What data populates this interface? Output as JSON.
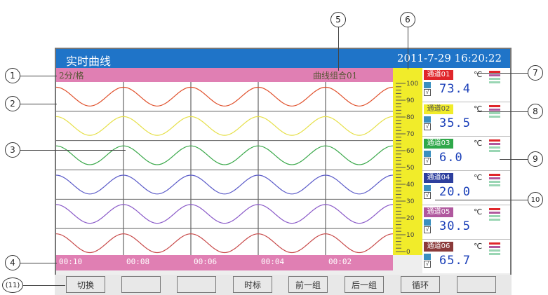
{
  "app": {
    "title": "实时曲线",
    "datetime": "2011-7-29   16:20:22"
  },
  "info": {
    "interval": "2分/格",
    "group": "曲线组合01"
  },
  "time_labels": [
    "00:10",
    "00:08",
    "00:06",
    "00:04",
    "00:02"
  ],
  "scale_labels": [
    "100",
    "90",
    "80",
    "70",
    "60",
    "50",
    "40",
    "30",
    "20",
    "10",
    "0"
  ],
  "channels": [
    {
      "label": "通道01",
      "color": "#e0262b",
      "value": "73.4",
      "unit": "℃"
    },
    {
      "label": "通道02",
      "color": "#f1ec2a",
      "value": "35.5",
      "unit": "℃"
    },
    {
      "label": "通道03",
      "color": "#2fa84a",
      "value": "6.0",
      "unit": "℃"
    },
    {
      "label": "通道04",
      "color": "#2d3f9e",
      "value": "20.0",
      "unit": "℃"
    },
    {
      "label": "通道05",
      "color": "#b0589e",
      "value": "30.5",
      "unit": "℃"
    },
    {
      "label": "通道06",
      "color": "#8b3a3a",
      "value": "65.7",
      "unit": "℃"
    }
  ],
  "buttons": [
    "切换",
    "",
    "",
    "时标",
    "前一组",
    "后一组",
    "循环",
    ""
  ],
  "annotations": {
    "n1": "1",
    "n2": "2",
    "n3": "3",
    "n4": "4",
    "n5": "5",
    "n6": "6",
    "n7": "7",
    "n8": "8",
    "n9": "9",
    "n10": "10",
    "n11": "(11)"
  },
  "curve_colors": [
    "#e0502b",
    "#e6e04a",
    "#3aa84a",
    "#5a5ac8",
    "#8a5ac8",
    "#c84a4a"
  ]
}
